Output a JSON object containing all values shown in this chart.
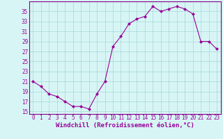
{
  "hours": [
    0,
    1,
    2,
    3,
    4,
    5,
    6,
    7,
    8,
    9,
    10,
    11,
    12,
    13,
    14,
    15,
    16,
    17,
    18,
    19,
    20,
    21,
    22,
    23
  ],
  "values": [
    21,
    20,
    18.5,
    18,
    17,
    16,
    16,
    15.5,
    18.5,
    21,
    28,
    30,
    32.5,
    33.5,
    34,
    36,
    35,
    35.5,
    36,
    35.5,
    34.5,
    29,
    29,
    27.5
  ],
  "line_color": "#990099",
  "marker": "D",
  "marker_size": 2.0,
  "bg_color": "#d8f5f5",
  "grid_color": "#aadddd",
  "xlabel": "Windchill (Refroidissement éolien,°C)",
  "ylim": [
    14.5,
    37
  ],
  "yticks": [
    15,
    17,
    19,
    21,
    23,
    25,
    27,
    29,
    31,
    33,
    35
  ],
  "xticks": [
    0,
    1,
    2,
    3,
    4,
    5,
    6,
    7,
    8,
    9,
    10,
    11,
    12,
    13,
    14,
    15,
    16,
    17,
    18,
    19,
    20,
    21,
    22,
    23
  ],
  "tick_fontsize": 5.5,
  "xlabel_fontsize": 6.5,
  "spine_color": "#880088"
}
